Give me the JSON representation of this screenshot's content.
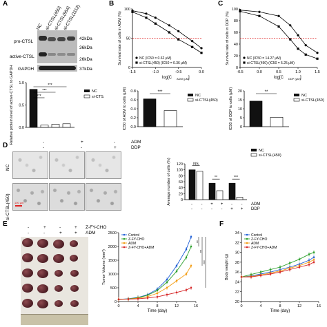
{
  "panel_letters": {
    "a": "A",
    "b": "B",
    "c": "C",
    "d": "D",
    "e": "E",
    "f": "F"
  },
  "panelA": {
    "lanes": [
      "NC",
      "si-CTSL(450)",
      "si-CTSL(864)",
      "si-CTSL(1112)"
    ],
    "rows": [
      "pro-CTSL",
      "active-CTSL",
      "GAPDH"
    ],
    "kda": [
      "42kDa",
      "36kDa",
      "26kDa",
      "37kDa"
    ]
  },
  "chart_data": [
    {
      "id": "A-bar",
      "type": "bar",
      "ylabel": "Relative protein level of active-CTSL to GAPDH",
      "ylim": [
        0,
        1.0
      ],
      "yticks": [
        "0.0",
        "0.5",
        "1.0"
      ],
      "values": [
        0.85,
        0.05,
        0.07,
        0.08
      ],
      "legend": [
        "NC",
        "si-CTS."
      ],
      "sig": [
        "***",
        "***",
        "***"
      ]
    },
    {
      "id": "B-curve",
      "type": "line",
      "ylabel": "Survival rate of cells in ADM (%)",
      "xlabel": "log[C",
      "xlabel_sub": "ADM (μM)",
      "xlabel_end": "]",
      "xlim": [
        -1.5,
        0
      ],
      "ylim": [
        0,
        100
      ],
      "xticks": [
        "-1.5",
        "-1.0",
        "-0.5",
        "0.0"
      ],
      "yticks": [
        "0",
        "50",
        "100"
      ],
      "legend": [
        "NC (IC50 = 0.62 μM)",
        "si-CTSL(450) (IC50 = 0.36 μM)"
      ],
      "series": [
        {
          "x": [
            -1.5,
            -1.2,
            -1.0,
            -0.7,
            -0.5,
            -0.2,
            0.0
          ],
          "y": [
            97,
            92,
            85,
            72,
            62,
            45,
            33
          ]
        },
        {
          "x": [
            -1.5,
            -1.2,
            -1.0,
            -0.7,
            -0.5,
            -0.2,
            0.0
          ],
          "y": [
            95,
            85,
            75,
            60,
            48,
            35,
            25
          ]
        }
      ]
    },
    {
      "id": "B-bar",
      "type": "bar",
      "ylabel": "IC50 of ADM to cells (μM)",
      "yticks": [
        "0.0",
        "0.2",
        "0.4",
        "0.6",
        "0.8"
      ],
      "ylim": [
        0,
        0.8
      ],
      "values": [
        0.62,
        0.36
      ],
      "legend": [
        "NC",
        "si-CTSL(450)"
      ],
      "sig": "***"
    },
    {
      "id": "C-curve",
      "type": "line",
      "ylabel": "Survival rate of cells in DDP (%)",
      "xlabel": "log[C",
      "xlabel_sub": "DDP (μM)",
      "xlabel_end": "]",
      "xlim": [
        -0.5,
        1.5
      ],
      "ylim": [
        0,
        100
      ],
      "xticks": [
        "-0.5",
        "0.0",
        "0.5",
        "1.0",
        "1.5"
      ],
      "yticks": [
        "0",
        "20",
        "40",
        "60",
        "80",
        "100"
      ],
      "legend": [
        "NC (IC50 = 14.27 μM)",
        "si-CTSL(450) (IC50 = 5.25 μM)"
      ],
      "series": [
        {
          "x": [
            -0.5,
            0.0,
            0.5,
            0.8,
            1.0,
            1.2,
            1.5
          ],
          "y": [
            98,
            95,
            88,
            72,
            55,
            38,
            25
          ]
        },
        {
          "x": [
            -0.5,
            0.0,
            0.5,
            0.8,
            1.0,
            1.2,
            1.5
          ],
          "y": [
            96,
            88,
            70,
            48,
            32,
            22,
            15
          ]
        }
      ]
    },
    {
      "id": "C-bar",
      "type": "bar",
      "ylabel": "IC50 of DDP to cells (μM)",
      "yticks": [
        "0",
        "5",
        "10",
        "15",
        "20"
      ],
      "ylim": [
        0,
        20
      ],
      "values": [
        14.27,
        5.25
      ],
      "legend": [
        "NC",
        "si-CTSL(450)"
      ],
      "sig": "**"
    },
    {
      "id": "D-bar",
      "type": "bar",
      "ylabel": "Average number of cells (%)",
      "yticks": [
        "0",
        "20",
        "40",
        "60",
        "80",
        "100",
        "120"
      ],
      "ylim": [
        0,
        120
      ],
      "series": [
        {
          "name": "NC",
          "values": [
            100,
            55,
            55
          ]
        },
        {
          "name": "si-CTSL(450)",
          "values": [
            95,
            30,
            8
          ]
        }
      ],
      "sig": [
        "NS",
        "**",
        "***"
      ],
      "row_labels": [
        "ADM",
        "DDP"
      ],
      "adm": [
        "-",
        "-",
        "+",
        "+",
        "-",
        "-"
      ],
      "ddp": [
        "-",
        "-",
        "-",
        "-",
        "+",
        "+"
      ]
    },
    {
      "id": "E-line",
      "type": "line",
      "ylabel": "Tumor Volume (mm³)",
      "xlabel": "Time (day)",
      "xlim": [
        0,
        16
      ],
      "ylim": [
        0,
        2500
      ],
      "xticks": [
        "0",
        "4",
        "8",
        "12",
        "16"
      ],
      "yticks": [
        "0",
        "500",
        "1000",
        "1500",
        "2000",
        "2500"
      ],
      "series": [
        {
          "name": "Control",
          "color": "#1f5fd6",
          "x": [
            0,
            2,
            4,
            6,
            8,
            10,
            12,
            14,
            15
          ],
          "y": [
            80,
            100,
            150,
            250,
            450,
            800,
            1300,
            1900,
            2350
          ]
        },
        {
          "name": "Z-FY-CHO",
          "color": "#2ca02c",
          "x": [
            0,
            2,
            4,
            6,
            8,
            10,
            12,
            14,
            15
          ],
          "y": [
            80,
            95,
            140,
            230,
            400,
            700,
            1100,
            1600,
            2000
          ]
        },
        {
          "name": "ADM",
          "color": "#f39c12",
          "x": [
            0,
            2,
            4,
            6,
            8,
            10,
            12,
            14,
            15
          ],
          "y": [
            80,
            90,
            120,
            180,
            300,
            500,
            750,
            1000,
            1300
          ]
        },
        {
          "name": "Z-FY-CHO+ADM",
          "color": "#d62728",
          "x": [
            0,
            2,
            4,
            6,
            8,
            10,
            12,
            14,
            15
          ],
          "y": [
            80,
            85,
            100,
            130,
            170,
            250,
            330,
            420,
            500
          ]
        }
      ],
      "sig": [
        "**",
        "**",
        "***"
      ]
    },
    {
      "id": "F-line",
      "type": "line",
      "ylabel": "Body weight (g)",
      "xlabel": "Time (day)",
      "xlim": [
        0,
        16
      ],
      "ylim": [
        20,
        34
      ],
      "xticks": [
        "0",
        "4",
        "8",
        "12",
        "16"
      ],
      "yticks": [
        "20",
        "22",
        "24",
        "26",
        "28",
        "30",
        "32",
        "34"
      ],
      "series": [
        {
          "name": "Control",
          "color": "#1f5fd6",
          "x": [
            0,
            2,
            4,
            6,
            8,
            10,
            12,
            14,
            15
          ],
          "y": [
            25,
            25.2,
            25.6,
            26,
            26.5,
            27,
            27.6,
            28.4,
            29
          ]
        },
        {
          "name": "Z-FY-CHO",
          "color": "#2ca02c",
          "x": [
            0,
            2,
            4,
            6,
            8,
            10,
            12,
            14,
            15
          ],
          "y": [
            25,
            25.5,
            26,
            26.5,
            27,
            27.8,
            28.6,
            29.6,
            30
          ]
        },
        {
          "name": "ADM",
          "color": "#f39c12",
          "x": [
            0,
            2,
            4,
            6,
            8,
            10,
            12,
            14,
            15
          ],
          "y": [
            25,
            25.1,
            25.4,
            25.8,
            26.2,
            26.8,
            27.3,
            28,
            28.5
          ]
        },
        {
          "name": "Z-FY-CHO+ADM",
          "color": "#d62728",
          "x": [
            0,
            2,
            4,
            6,
            8,
            10,
            12,
            14,
            15
          ],
          "y": [
            25,
            25,
            25.3,
            25.6,
            26,
            26.5,
            27,
            27.5,
            28
          ]
        }
      ]
    }
  ],
  "panelD": {
    "col_adm": [
      "-",
      "+",
      "-"
    ],
    "col_ddp": [
      "-",
      "-",
      "+"
    ],
    "col_labels": [
      "ADM",
      "DDP"
    ],
    "row_labels": [
      "NC",
      "si-CTSL(450)"
    ],
    "scale": "100 μm"
  },
  "panelE": {
    "header_labels": [
      "Z-FY-CHO",
      "ADM"
    ],
    "zfy": [
      "-",
      "+",
      "-",
      "+"
    ],
    "adm": [
      "-",
      "-",
      "+",
      "+"
    ]
  }
}
